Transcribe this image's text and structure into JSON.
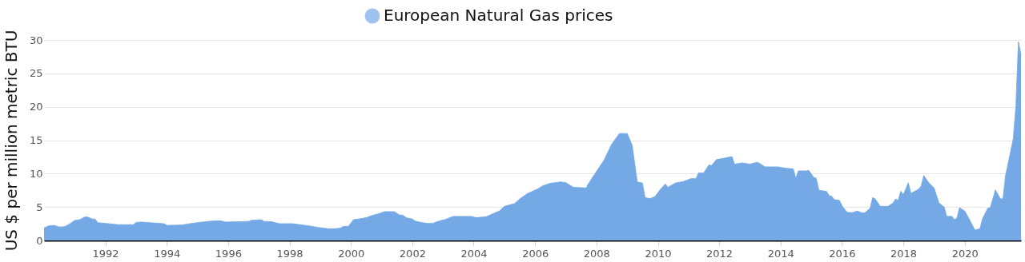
{
  "chart_data": {
    "type": "area",
    "ylabel": "US $ per million metric BTU",
    "x": [
      "1990-01",
      "1990-03",
      "1990-05",
      "1990-07",
      "1990-09",
      "1990-11",
      "1991-01",
      "1991-03",
      "1991-05",
      "1991-06",
      "1991-08",
      "1991-09",
      "1991-10",
      "1992-01",
      "1992-06",
      "1992-12",
      "1993-01",
      "1993-03",
      "1993-12",
      "1994-01",
      "1994-07",
      "1994-10",
      "1995-01",
      "1995-03",
      "1995-07",
      "1995-10",
      "1995-12",
      "1996-09",
      "1996-10",
      "1997-02",
      "1997-03",
      "1997-06",
      "1997-09",
      "1998-02",
      "1998-05",
      "1998-07",
      "1998-09",
      "1998-12",
      "1999-04",
      "1999-07",
      "1999-09",
      "1999-10",
      "1999-12",
      "2000-02",
      "2000-04",
      "2000-07",
      "2000-09",
      "2000-12",
      "2001-02",
      "2001-06",
      "2001-08",
      "2001-09",
      "2001-11",
      "2002-01",
      "2002-02",
      "2002-05",
      "2002-07",
      "2002-09",
      "2002-11",
      "2003-02",
      "2003-05",
      "2003-12",
      "2004-02",
      "2004-06",
      "2004-08",
      "2004-11",
      "2005-01",
      "2005-05",
      "2005-07",
      "2005-10",
      "2006-02",
      "2006-04",
      "2006-07",
      "2006-11",
      "2007-01",
      "2007-04",
      "2007-09",
      "2007-10",
      "2008-01",
      "2008-04",
      "2008-07",
      "2008-10",
      "2009-01",
      "2009-03",
      "2009-05",
      "2009-07",
      "2009-08",
      "2009-10",
      "2009-12",
      "2010-02",
      "2010-04",
      "2010-05",
      "2010-08",
      "2010-11",
      "2011-02",
      "2011-04",
      "2011-05",
      "2011-07",
      "2011-09",
      "2011-10",
      "2011-12",
      "2012-03",
      "2012-06",
      "2012-07",
      "2012-10",
      "2013-01",
      "2013-04",
      "2013-07",
      "2013-12",
      "2014-03",
      "2014-06",
      "2014-07",
      "2014-08",
      "2014-11",
      "2014-12",
      "2015-02",
      "2015-03",
      "2015-04",
      "2015-07",
      "2015-08",
      "2015-09",
      "2015-10",
      "2015-12",
      "2016-01",
      "2016-03",
      "2016-05",
      "2016-07",
      "2016-09",
      "2016-10",
      "2016-12",
      "2017-01",
      "2017-02",
      "2017-04",
      "2017-07",
      "2017-09",
      "2017-10",
      "2017-11",
      "2017-12",
      "2018-01",
      "2018-03",
      "2018-04",
      "2018-07",
      "2018-08",
      "2018-09",
      "2018-11",
      "2019-01",
      "2019-03",
      "2019-05",
      "2019-06",
      "2019-08",
      "2019-09",
      "2019-10",
      "2019-11",
      "2020-01",
      "2020-03",
      "2020-05",
      "2020-07",
      "2020-08",
      "2020-10",
      "2020-11",
      "2021-01",
      "2021-03",
      "2021-04",
      "2021-05",
      "2021-07",
      "2021-08",
      "2021-09",
      "2021-10",
      "2021-11"
    ],
    "series": [
      {
        "name": "European Natural Gas prices",
        "color": "#74a9e6",
        "values": [
          1.85,
          2.2,
          2.25,
          2.0,
          2.05,
          2.45,
          3.0,
          3.1,
          3.5,
          3.5,
          3.2,
          3.2,
          2.65,
          2.55,
          2.35,
          2.35,
          2.7,
          2.75,
          2.5,
          2.25,
          2.3,
          2.5,
          2.65,
          2.75,
          2.9,
          2.95,
          2.75,
          2.85,
          3.0,
          3.1,
          2.85,
          2.8,
          2.5,
          2.5,
          2.35,
          2.25,
          2.15,
          1.95,
          1.75,
          1.75,
          1.85,
          2.1,
          2.1,
          3.1,
          3.2,
          3.4,
          3.7,
          4.0,
          4.3,
          4.3,
          3.8,
          3.8,
          3.35,
          3.2,
          2.9,
          2.65,
          2.55,
          2.55,
          2.85,
          3.15,
          3.6,
          3.6,
          3.4,
          3.55,
          3.9,
          4.4,
          5.1,
          5.5,
          6.2,
          7.0,
          7.7,
          8.15,
          8.55,
          8.75,
          8.65,
          7.95,
          7.85,
          8.55,
          10.3,
          12.0,
          14.4,
          16.0,
          16.0,
          14.25,
          8.75,
          8.6,
          6.4,
          6.25,
          6.6,
          7.65,
          8.45,
          7.95,
          8.6,
          8.8,
          9.25,
          9.25,
          10.1,
          10.1,
          11.3,
          11.2,
          12.1,
          12.3,
          12.55,
          11.4,
          11.6,
          11.4,
          11.7,
          11.0,
          11.0,
          10.8,
          10.7,
          9.3,
          10.4,
          10.4,
          10.5,
          9.4,
          9.3,
          7.5,
          7.35,
          6.7,
          6.6,
          6.1,
          6.0,
          5.2,
          4.2,
          4.15,
          4.4,
          4.1,
          4.15,
          4.8,
          6.4,
          6.2,
          5.1,
          5.1,
          5.6,
          6.2,
          6.0,
          7.35,
          6.85,
          8.6,
          7.05,
          7.65,
          8.15,
          9.7,
          8.6,
          7.85,
          5.6,
          5.0,
          3.6,
          3.6,
          3.1,
          3.35,
          4.9,
          4.4,
          3.05,
          1.55,
          1.75,
          3.25,
          4.8,
          4.9,
          7.55,
          6.2,
          6.25,
          9.7,
          13.3,
          15.2,
          20.0,
          29.7,
          27.8
        ]
      }
    ],
    "xlim": [
      "1990-01",
      "2021-11"
    ],
    "xticks": [
      "1992",
      "1994",
      "1996",
      "1998",
      "2000",
      "2002",
      "2004",
      "2006",
      "2008",
      "2010",
      "2012",
      "2014",
      "2016",
      "2018",
      "2020"
    ],
    "ylim": [
      0,
      30
    ],
    "yticks": [
      0,
      5,
      10,
      15,
      20,
      25,
      30
    ],
    "grid": "y",
    "legend": "top",
    "marker": "none",
    "line_style": "solid"
  }
}
